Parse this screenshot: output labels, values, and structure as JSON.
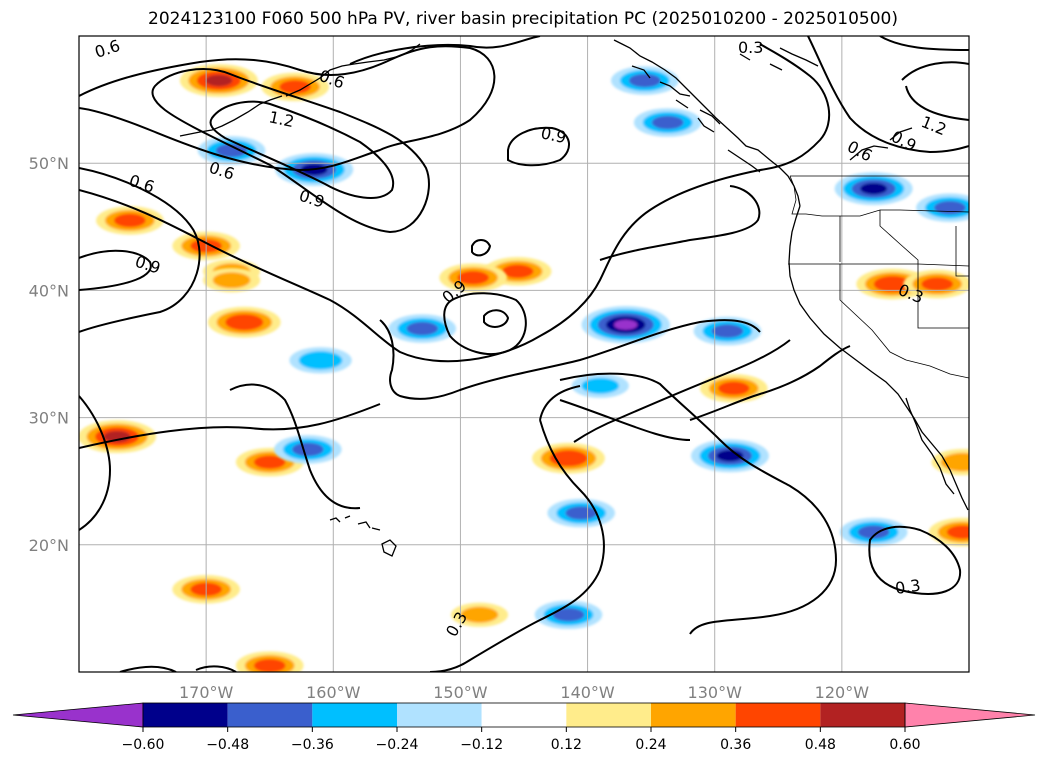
{
  "chart_data": {
    "type": "contour",
    "title": "2024123100 F060 500 hPa PV, river basin precipitation PC (2025010200 - 2025010500)",
    "map": {
      "lon_range": [
        -180,
        -110
      ],
      "lat_range": [
        10,
        60
      ],
      "x_ticks": [
        {
          "lon": -170,
          "label": "170°W"
        },
        {
          "lon": -160,
          "label": "160°W"
        },
        {
          "lon": -150,
          "label": "150°W"
        },
        {
          "lon": -140,
          "label": "140°W"
        },
        {
          "lon": -130,
          "label": "130°W"
        },
        {
          "lon": -120,
          "label": "120°W"
        }
      ],
      "y_ticks": [
        {
          "lat": 20,
          "label": "20°N"
        },
        {
          "lat": 30,
          "label": "30°N"
        },
        {
          "lat": 40,
          "label": "40°N"
        },
        {
          "lat": 50,
          "label": "50°N"
        }
      ],
      "grid": true
    },
    "colorbar": {
      "boundaries": [
        -0.72,
        -0.6,
        -0.48,
        -0.36,
        -0.24,
        -0.12,
        0.12,
        0.24,
        0.36,
        0.48,
        0.6,
        0.72
      ],
      "colors": [
        "#9932cc",
        "#00008b",
        "#3a5fcd",
        "#00bfff",
        "#b0e2ff",
        "#ffffff",
        "#ffec8b",
        "#ffa500",
        "#ff4500",
        "#b22222",
        "#ff82ab"
      ],
      "tick_labels": [
        "−0.60",
        "−0.48",
        "−0.36",
        "−0.24",
        "−0.12",
        "0.12",
        "0.24",
        "0.36",
        "0.48",
        "0.60"
      ],
      "extend": "both"
    },
    "pv_contours": [
      {
        "level": 0.3,
        "labels": [
          "0.3",
          "0.3",
          "0.3",
          "0.3"
        ]
      },
      {
        "level": 0.6,
        "labels": [
          "0.6",
          "0.6",
          "0.6",
          "0.6"
        ]
      },
      {
        "level": 0.9,
        "labels": [
          "0.9",
          "0.9",
          "0.9",
          "0.9",
          "0.9"
        ]
      },
      {
        "level": 1.2,
        "labels": [
          "1.2",
          "1.2"
        ]
      }
    ],
    "precip_pc_blobs": [
      {
        "lon": -169,
        "lat": 56.5,
        "value": 0.5
      },
      {
        "lon": -163,
        "lat": 56,
        "value": 0.4
      },
      {
        "lon": -176,
        "lat": 45.5,
        "value": 0.4
      },
      {
        "lon": -177,
        "lat": 28.5,
        "value": 0.5
      },
      {
        "lon": -170,
        "lat": 43.5,
        "value": 0.4
      },
      {
        "lon": -167,
        "lat": 37.5,
        "value": 0.45
      },
      {
        "lon": -168,
        "lat": 41.5,
        "value": 0.3
      },
      {
        "lon": -168,
        "lat": 40.8,
        "value": 0.3
      },
      {
        "lon": -165,
        "lat": 26.5,
        "value": 0.4
      },
      {
        "lon": -170,
        "lat": 16.5,
        "value": 0.4
      },
      {
        "lon": -165,
        "lat": 10.5,
        "value": 0.4
      },
      {
        "lon": -145.5,
        "lat": 41.5,
        "value": 0.4
      },
      {
        "lon": -149,
        "lat": 41.0,
        "value": 0.4
      },
      {
        "lon": -141.5,
        "lat": 26.8,
        "value": 0.45
      },
      {
        "lon": -148.5,
        "lat": 14.5,
        "value": 0.3
      },
      {
        "lon": -128.5,
        "lat": 32.3,
        "value": 0.4
      },
      {
        "lon": -116,
        "lat": 40.5,
        "value": 0.45
      },
      {
        "lon": -112.5,
        "lat": 40.5,
        "value": 0.4
      },
      {
        "lon": -110.5,
        "lat": 21.0,
        "value": 0.4
      },
      {
        "lon": -110.5,
        "lat": 26.5,
        "value": 0.35
      },
      {
        "lon": -161.5,
        "lat": 49.5,
        "value": -0.5
      },
      {
        "lon": -168,
        "lat": 51,
        "value": -0.4
      },
      {
        "lon": -153,
        "lat": 37.0,
        "value": -0.4
      },
      {
        "lon": -161,
        "lat": 34.5,
        "value": -0.35
      },
      {
        "lon": -162,
        "lat": 27.5,
        "value": -0.4
      },
      {
        "lon": -137,
        "lat": 37.3,
        "value": -0.6
      },
      {
        "lon": -129,
        "lat": 36.8,
        "value": -0.4
      },
      {
        "lon": -128.8,
        "lat": 27.0,
        "value": -0.5
      },
      {
        "lon": -140.5,
        "lat": 22.5,
        "value": -0.4
      },
      {
        "lon": -141.5,
        "lat": 14.5,
        "value": -0.4
      },
      {
        "lon": -117.5,
        "lat": 21.0,
        "value": -0.4
      },
      {
        "lon": -117.5,
        "lat": 48.0,
        "value": -0.5
      },
      {
        "lon": -111.5,
        "lat": 46.5,
        "value": -0.4
      },
      {
        "lon": -135.5,
        "lat": 56.5,
        "value": -0.4
      },
      {
        "lon": -133.7,
        "lat": 53.2,
        "value": -0.4
      },
      {
        "lon": -139,
        "lat": 32.5,
        "value": -0.3
      }
    ]
  }
}
